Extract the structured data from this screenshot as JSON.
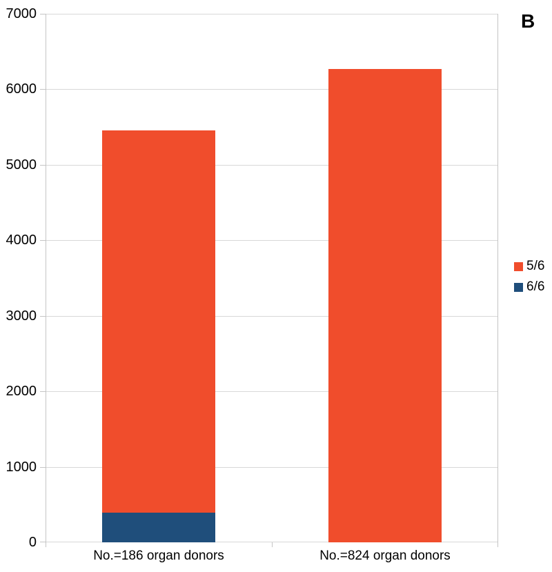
{
  "panel_label": "B",
  "chart_data": {
    "type": "bar",
    "subtype": "stacked-column",
    "title": "",
    "xlabel": "",
    "ylabel": "",
    "categories": [
      "No.=186 organ donors",
      "No.=824 organ donors"
    ],
    "series": [
      {
        "name": "5/6",
        "color": "#F04D2C",
        "values": [
          5070,
          6270
        ]
      },
      {
        "name": "6/6",
        "color": "#1F4E7B",
        "values": [
          390,
          0
        ]
      }
    ],
    "stack_order_bottom_to_top": [
      "6/6",
      "5/6"
    ],
    "totals": [
      5460,
      6270
    ],
    "ylim": [
      0,
      7000
    ],
    "ytick_interval": 1000,
    "ytick_labels": [
      "0",
      "1000",
      "2000",
      "3000",
      "4000",
      "5000",
      "6000",
      "7000"
    ],
    "grid": true,
    "legend_position": "right",
    "legend_entries": [
      "5/6",
      "6/6"
    ]
  },
  "colors": {
    "background": "#FFFFFF",
    "grid": "#D8D8D8",
    "axis": "#C4C4C4",
    "text": "#000000"
  },
  "layout_note": "single stacked column chart, panel B"
}
